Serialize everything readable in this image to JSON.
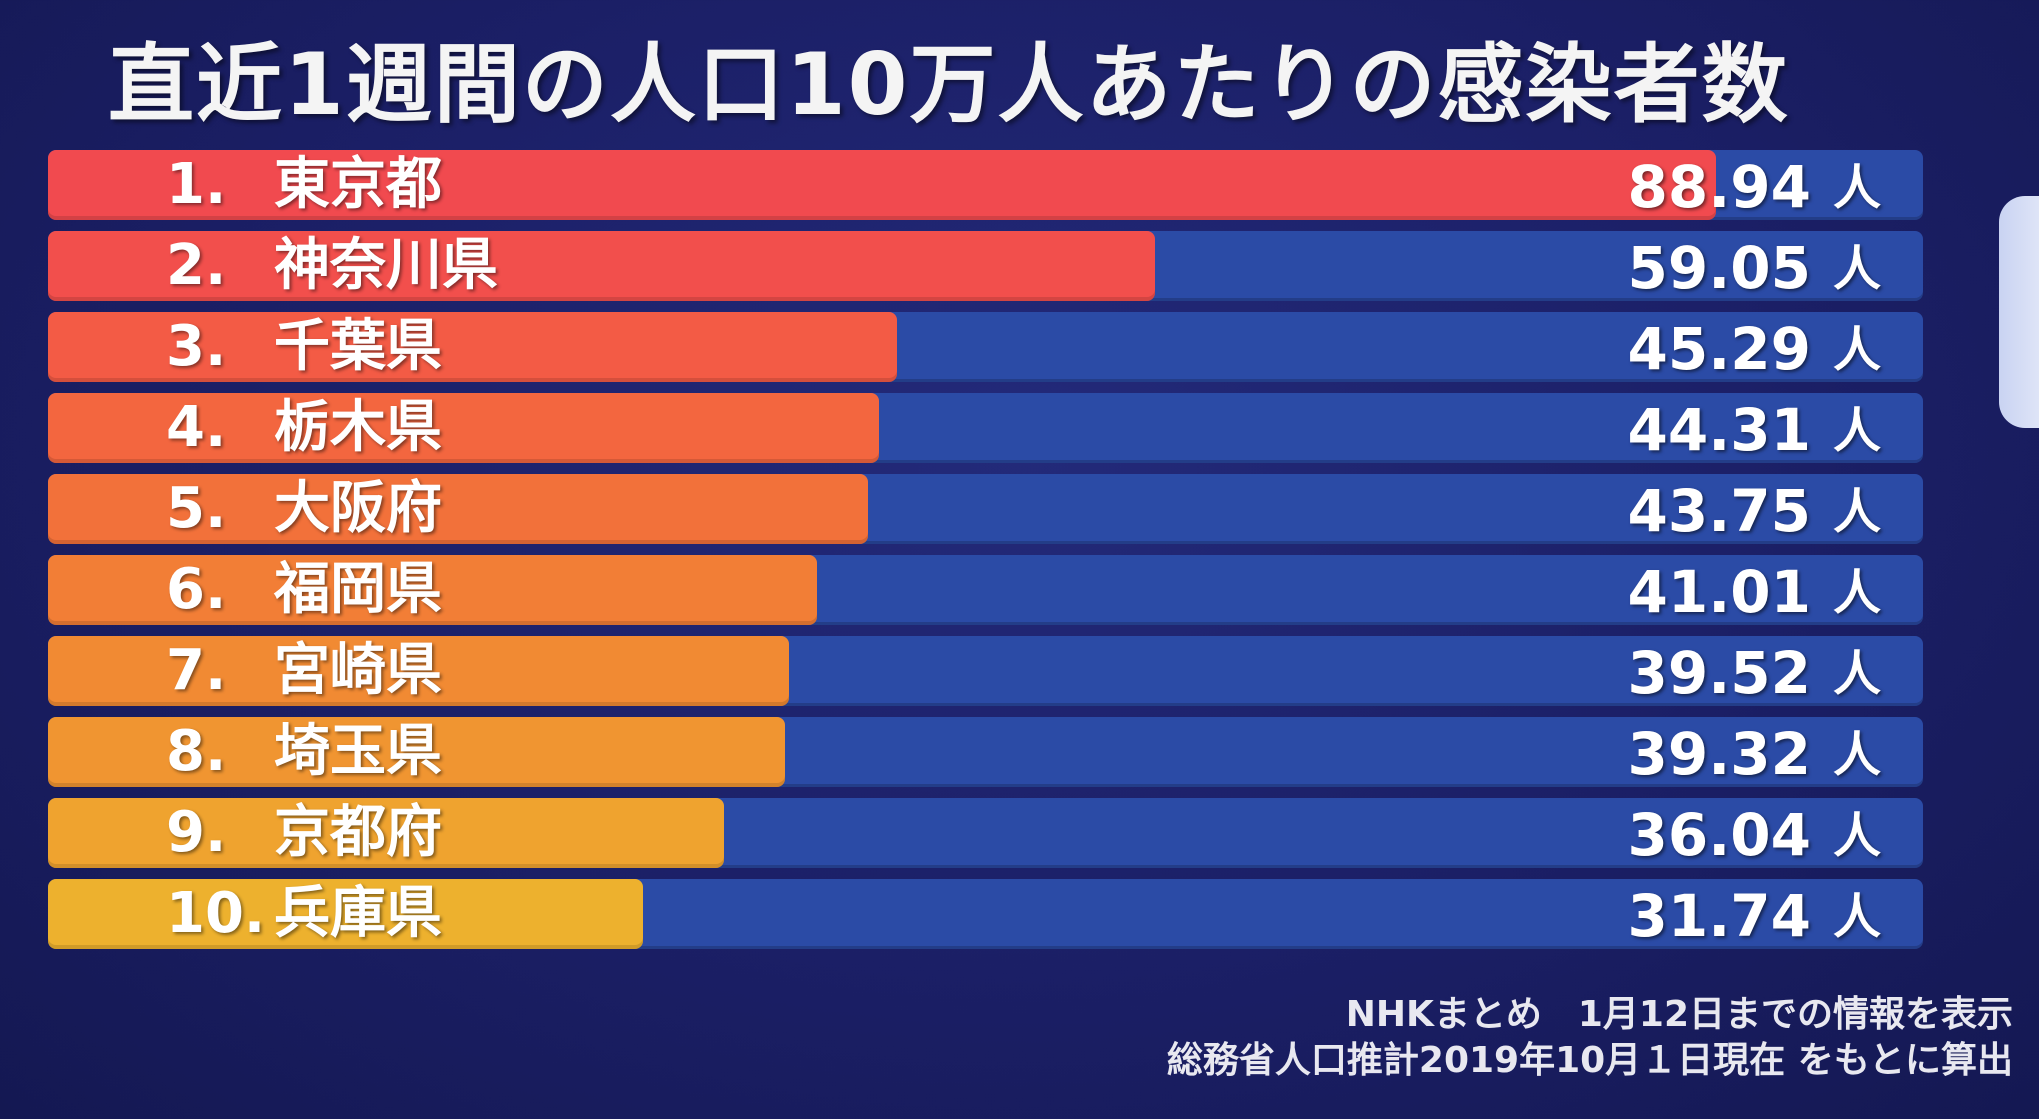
{
  "chart_data": {
    "type": "bar",
    "orientation": "horizontal",
    "title": "直近1週間の人口10万人あたりの感染者数",
    "unit": "人",
    "xlim": [
      0,
      100
    ],
    "grid": false,
    "legend": "none",
    "bars": [
      {
        "rank": "1.",
        "name": "東京都",
        "value": 88.94,
        "label": "88.94",
        "color": "#f14a4f"
      },
      {
        "rank": "2.",
        "name": "神奈川県",
        "value": 59.05,
        "label": "59.05",
        "color": "#f24f4c"
      },
      {
        "rank": "3.",
        "name": "千葉県",
        "value": 45.29,
        "label": "45.29",
        "color": "#f35b45"
      },
      {
        "rank": "4.",
        "name": "栃木県",
        "value": 44.31,
        "label": "44.31",
        "color": "#f3663f"
      },
      {
        "rank": "5.",
        "name": "大阪府",
        "value": 43.75,
        "label": "43.75",
        "color": "#f2713a"
      },
      {
        "rank": "6.",
        "name": "福岡県",
        "value": 41.01,
        "label": "41.01",
        "color": "#f27e36"
      },
      {
        "rank": "7.",
        "name": "宮崎県",
        "value": 39.52,
        "label": "39.52",
        "color": "#f18a33"
      },
      {
        "rank": "8.",
        "name": "埼玉県",
        "value": 39.32,
        "label": "39.32",
        "color": "#f09531"
      },
      {
        "rank": "9.",
        "name": "京都府",
        "value": 36.04,
        "label": "36.04",
        "color": "#efa32f"
      },
      {
        "rank": "10.",
        "name": "兵庫県",
        "value": 31.74,
        "label": "31.74",
        "color": "#edb12e"
      }
    ],
    "track_color": "#2b4ba6"
  },
  "footnotes": {
    "line1": "NHKまとめ　1月12日までの情報を表示",
    "line2": "総務省人口推計2019年10月１日現在 をもとに算出"
  }
}
